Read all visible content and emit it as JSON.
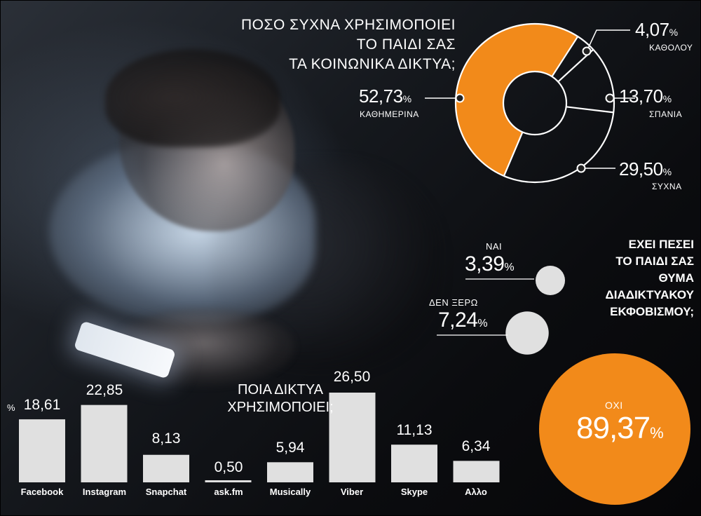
{
  "colors": {
    "orange": "#f28a1a",
    "grey": "#e0e0e0",
    "white": "#ffffff"
  },
  "chart_data": [
    {
      "type": "pie",
      "variant": "donut",
      "title": [
        "ΠΟΣΟ ΣΥΧΝΑ ΧΡΗΣΙΜΟΠΟΙΕΙ",
        "ΤΟ ΠΑΙΔΙ ΣΑΣ",
        "ΤΑ ΚΟΙΝΩΝΙΚΑ ΔΙΚΤΥΑ;"
      ],
      "slices": [
        {
          "label": "ΚΑΘΗΜΕΡΙΝΑ",
          "value": 52.73,
          "display": "52,73",
          "color": "#f28a1a"
        },
        {
          "label": "ΚΑΘΟΛΟΥ",
          "value": 4.07,
          "display": "4,07"
        },
        {
          "label": "ΣΠΑΝΙΑ",
          "value": 13.7,
          "display": "13,70"
        },
        {
          "label": "ΣΥΧΝΑ",
          "value": 29.5,
          "display": "29,50"
        }
      ],
      "unit": "%"
    },
    {
      "type": "bubble",
      "title": [
        "ΕΧΕΙ ΠΕΣΕΙ",
        "ΤΟ ΠΑΙΔΙ ΣΑΣ",
        "ΘΥΜΑ",
        "ΔΙΑΔΙΚΤΥΑΚΟΥ",
        "ΕΚΦΟΒΙΣΜΟΥ;"
      ],
      "items": [
        {
          "label": "ΝΑΙ",
          "value": 3.39,
          "display": "3,39"
        },
        {
          "label": "ΔΕΝ ΞΕΡΩ",
          "value": 7.24,
          "display": "7,24"
        },
        {
          "label": "ΟΧΙ",
          "value": 89.37,
          "display": "89,37"
        }
      ],
      "unit": "%"
    },
    {
      "type": "bar",
      "title": [
        "ΠΟΙΑ ΔΙΚΤΥΑ",
        "ΧΡΗΣΙΜΟΠΟΙΕΙ;"
      ],
      "unit": "%",
      "categories": [
        "Facebook",
        "Instagram",
        "Snapchat",
        "ask.fm",
        "Musically",
        "Viber",
        "Skype",
        "Αλλο"
      ],
      "values": [
        18.61,
        22.85,
        8.13,
        0.5,
        5.94,
        26.5,
        11.13,
        6.34
      ],
      "display": [
        "18,61",
        "22,85",
        "8,13",
        "0,50",
        "5,94",
        "26,50",
        "11,13",
        "6,34"
      ]
    }
  ]
}
